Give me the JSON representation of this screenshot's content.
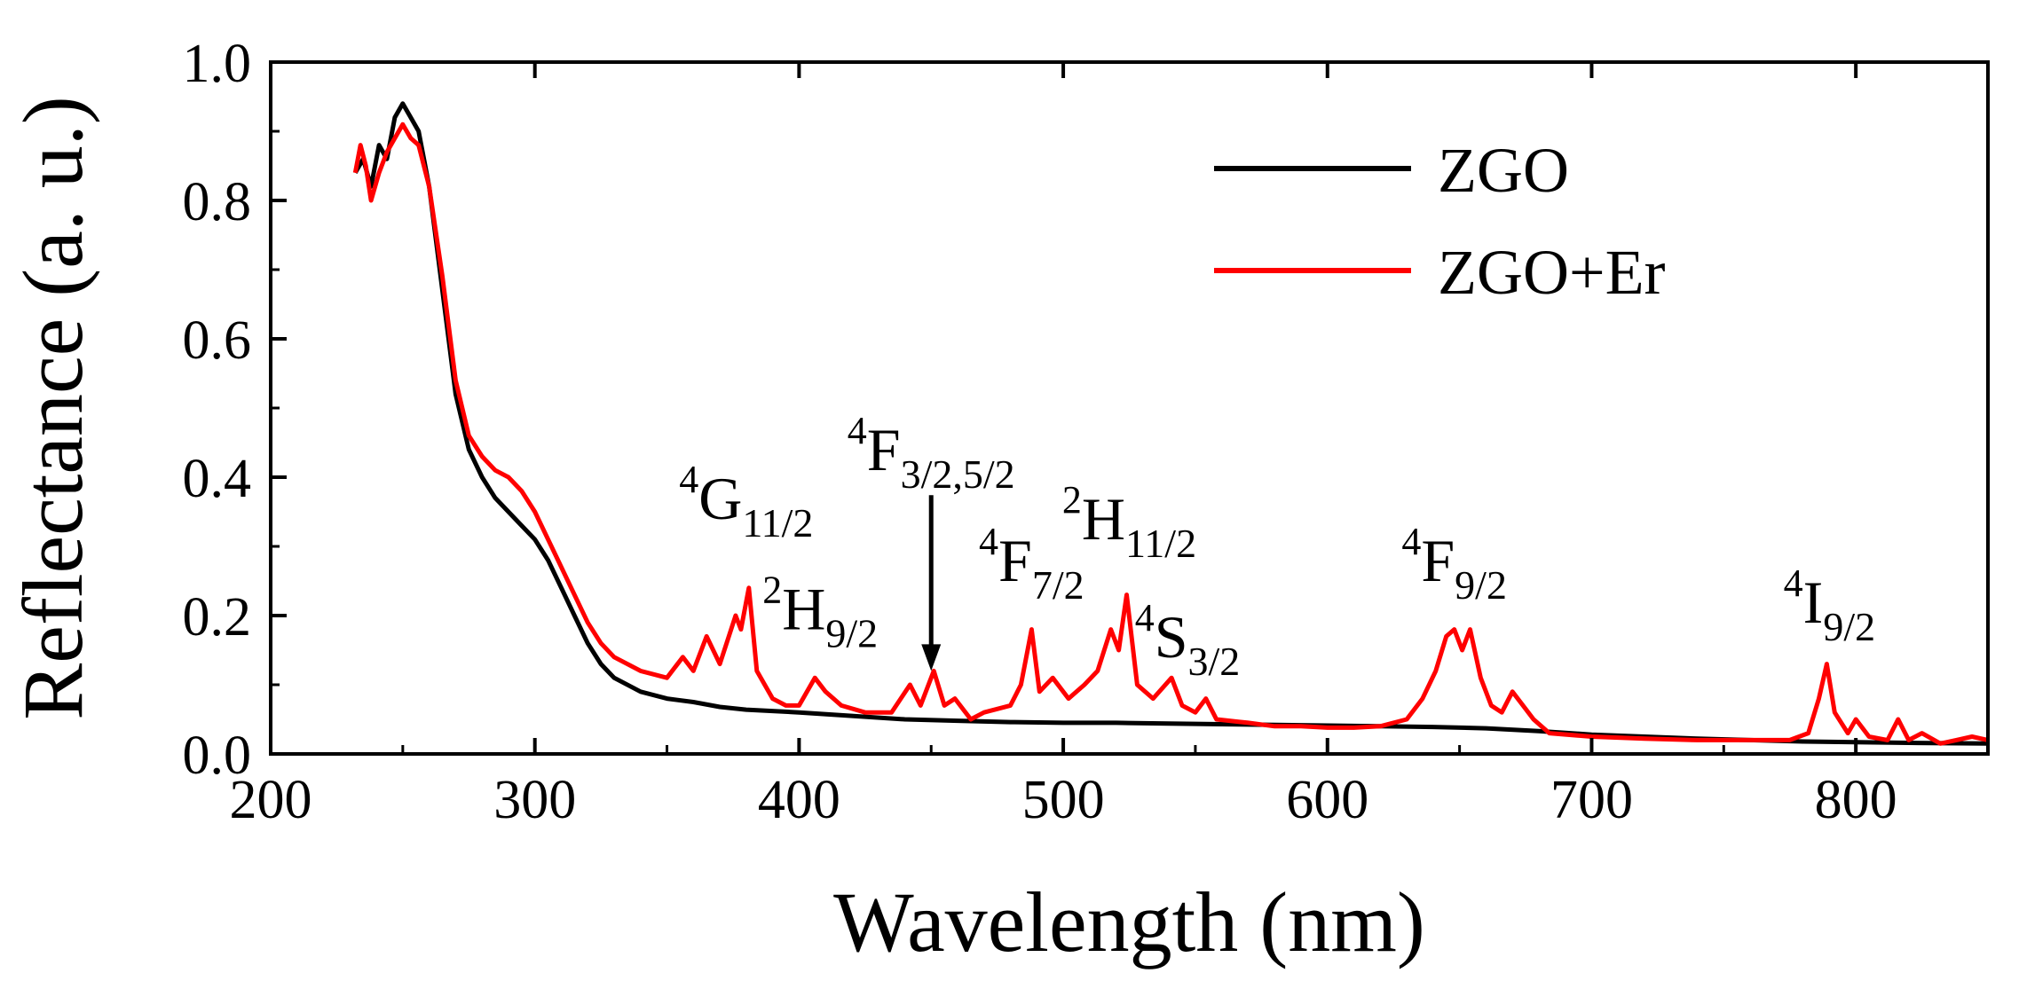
{
  "chart_data": {
    "type": "line",
    "xlabel": "Wavelength (nm)",
    "ylabel": "Reflectance (a. u.)",
    "xlim": [
      200,
      850
    ],
    "ylim": [
      0.0,
      1.0
    ],
    "x_ticks": [
      200,
      300,
      400,
      500,
      600,
      700,
      800
    ],
    "y_ticks": [
      "0.0",
      "0.2",
      "0.4",
      "0.6",
      "0.8",
      "1.0"
    ],
    "grid": false,
    "legend_position": "top-right",
    "series": [
      {
        "name": "ZGO",
        "color": "#000000",
        "points": [
          [
            232,
            0.84
          ],
          [
            235,
            0.86
          ],
          [
            238,
            0.82
          ],
          [
            241,
            0.88
          ],
          [
            244,
            0.86
          ],
          [
            247,
            0.92
          ],
          [
            250,
            0.94
          ],
          [
            253,
            0.92
          ],
          [
            256,
            0.9
          ],
          [
            260,
            0.82
          ],
          [
            265,
            0.67
          ],
          [
            270,
            0.52
          ],
          [
            275,
            0.44
          ],
          [
            280,
            0.4
          ],
          [
            285,
            0.37
          ],
          [
            290,
            0.35
          ],
          [
            295,
            0.33
          ],
          [
            300,
            0.31
          ],
          [
            305,
            0.28
          ],
          [
            310,
            0.24
          ],
          [
            315,
            0.2
          ],
          [
            320,
            0.16
          ],
          [
            325,
            0.13
          ],
          [
            330,
            0.11
          ],
          [
            340,
            0.09
          ],
          [
            350,
            0.08
          ],
          [
            360,
            0.075
          ],
          [
            370,
            0.068
          ],
          [
            380,
            0.064
          ],
          [
            400,
            0.06
          ],
          [
            420,
            0.055
          ],
          [
            440,
            0.05
          ],
          [
            460,
            0.048
          ],
          [
            480,
            0.046
          ],
          [
            500,
            0.045
          ],
          [
            520,
            0.045
          ],
          [
            540,
            0.044
          ],
          [
            560,
            0.043
          ],
          [
            580,
            0.042
          ],
          [
            600,
            0.041
          ],
          [
            620,
            0.04
          ],
          [
            640,
            0.039
          ],
          [
            660,
            0.037
          ],
          [
            680,
            0.033
          ],
          [
            700,
            0.028
          ],
          [
            720,
            0.025
          ],
          [
            740,
            0.022
          ],
          [
            760,
            0.02
          ],
          [
            780,
            0.018
          ],
          [
            800,
            0.017
          ],
          [
            820,
            0.016
          ],
          [
            850,
            0.015
          ]
        ]
      },
      {
        "name": "ZGO+Er",
        "color": "#ff0000",
        "points": [
          [
            232,
            0.84
          ],
          [
            234,
            0.88
          ],
          [
            236,
            0.85
          ],
          [
            238,
            0.8
          ],
          [
            241,
            0.84
          ],
          [
            244,
            0.87
          ],
          [
            247,
            0.89
          ],
          [
            250,
            0.91
          ],
          [
            253,
            0.89
          ],
          [
            256,
            0.88
          ],
          [
            260,
            0.82
          ],
          [
            265,
            0.69
          ],
          [
            270,
            0.54
          ],
          [
            275,
            0.46
          ],
          [
            280,
            0.43
          ],
          [
            285,
            0.41
          ],
          [
            290,
            0.4
          ],
          [
            295,
            0.38
          ],
          [
            300,
            0.35
          ],
          [
            305,
            0.31
          ],
          [
            310,
            0.27
          ],
          [
            315,
            0.23
          ],
          [
            320,
            0.19
          ],
          [
            325,
            0.16
          ],
          [
            330,
            0.14
          ],
          [
            340,
            0.12
          ],
          [
            350,
            0.11
          ],
          [
            356,
            0.14
          ],
          [
            360,
            0.12
          ],
          [
            365,
            0.17
          ],
          [
            370,
            0.13
          ],
          [
            376,
            0.2
          ],
          [
            378,
            0.18
          ],
          [
            381,
            0.24
          ],
          [
            384,
            0.12
          ],
          [
            390,
            0.08
          ],
          [
            395,
            0.07
          ],
          [
            400,
            0.07
          ],
          [
            406,
            0.11
          ],
          [
            410,
            0.09
          ],
          [
            416,
            0.07
          ],
          [
            425,
            0.06
          ],
          [
            435,
            0.06
          ],
          [
            442,
            0.1
          ],
          [
            446,
            0.07
          ],
          [
            451,
            0.12
          ],
          [
            455,
            0.07
          ],
          [
            459,
            0.08
          ],
          [
            465,
            0.05
          ],
          [
            470,
            0.06
          ],
          [
            480,
            0.07
          ],
          [
            484,
            0.1
          ],
          [
            488,
            0.18
          ],
          [
            491,
            0.09
          ],
          [
            496,
            0.11
          ],
          [
            502,
            0.08
          ],
          [
            508,
            0.1
          ],
          [
            513,
            0.12
          ],
          [
            518,
            0.18
          ],
          [
            521,
            0.15
          ],
          [
            524,
            0.23
          ],
          [
            528,
            0.1
          ],
          [
            534,
            0.08
          ],
          [
            541,
            0.11
          ],
          [
            545,
            0.07
          ],
          [
            550,
            0.06
          ],
          [
            554,
            0.08
          ],
          [
            558,
            0.05
          ],
          [
            570,
            0.045
          ],
          [
            580,
            0.04
          ],
          [
            590,
            0.04
          ],
          [
            600,
            0.038
          ],
          [
            610,
            0.038
          ],
          [
            620,
            0.04
          ],
          [
            630,
            0.05
          ],
          [
            636,
            0.08
          ],
          [
            641,
            0.12
          ],
          [
            645,
            0.17
          ],
          [
            648,
            0.18
          ],
          [
            651,
            0.15
          ],
          [
            654,
            0.18
          ],
          [
            658,
            0.11
          ],
          [
            662,
            0.07
          ],
          [
            666,
            0.06
          ],
          [
            670,
            0.09
          ],
          [
            674,
            0.07
          ],
          [
            678,
            0.05
          ],
          [
            684,
            0.03
          ],
          [
            700,
            0.025
          ],
          [
            720,
            0.022
          ],
          [
            740,
            0.02
          ],
          [
            760,
            0.02
          ],
          [
            775,
            0.02
          ],
          [
            782,
            0.03
          ],
          [
            786,
            0.08
          ],
          [
            789,
            0.13
          ],
          [
            792,
            0.06
          ],
          [
            797,
            0.03
          ],
          [
            800,
            0.05
          ],
          [
            805,
            0.025
          ],
          [
            812,
            0.02
          ],
          [
            816,
            0.05
          ],
          [
            820,
            0.02
          ],
          [
            825,
            0.03
          ],
          [
            832,
            0.015
          ],
          [
            838,
            0.02
          ],
          [
            844,
            0.025
          ],
          [
            850,
            0.02
          ]
        ]
      }
    ],
    "annotations": [
      {
        "sup": "4",
        "base": "G",
        "sub": "11/2",
        "x": 380,
        "y": 0.34
      },
      {
        "sup": "2",
        "base": "H",
        "sub": "9/2",
        "x": 408,
        "y": 0.18
      },
      {
        "sup": "4",
        "base": "F",
        "sub": "3/2,5/2",
        "x": 450,
        "y": 0.41,
        "arrow_to": 0.12
      },
      {
        "sup": "4",
        "base": "F",
        "sub": "7/2",
        "x": 488,
        "y": 0.25
      },
      {
        "sup": "2",
        "base": "H",
        "sub": "11/2",
        "x": 525,
        "y": 0.31
      },
      {
        "sup": "4",
        "base": "S",
        "sub": "3/2",
        "x": 547,
        "y": 0.14
      },
      {
        "sup": "4",
        "base": "F",
        "sub": "9/2",
        "x": 648,
        "y": 0.25
      },
      {
        "sup": "4",
        "base": "I",
        "sub": "9/2",
        "x": 790,
        "y": 0.19
      }
    ]
  }
}
